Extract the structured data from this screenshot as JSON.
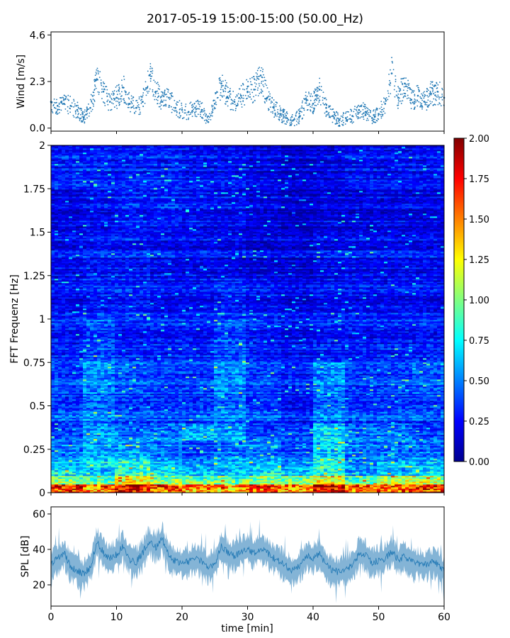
{
  "title": "2017-05-19 15:00-15:00 (50.00_Hz)",
  "chart_data": [
    {
      "type": "scatter",
      "ylabel": "Wind [m/s]",
      "xlim": [
        0,
        60
      ],
      "ylim": [
        -0.15,
        4.75
      ],
      "yticks": [
        0.0,
        2.3,
        4.6
      ],
      "ytick_labels": [
        "0.0",
        "2.3",
        "4.6"
      ],
      "color": "#1f77b4",
      "x": [
        0,
        1,
        2,
        3,
        4,
        5,
        6,
        7,
        8,
        9,
        10,
        11,
        12,
        13,
        14,
        15,
        16,
        17,
        18,
        19,
        20,
        21,
        22,
        23,
        24,
        25,
        26,
        27,
        28,
        29,
        30,
        31,
        32,
        33,
        34,
        35,
        36,
        37,
        38,
        39,
        40,
        41,
        42,
        43,
        44,
        45,
        46,
        47,
        48,
        49,
        50,
        51,
        52,
        53,
        54,
        55,
        56,
        57,
        58,
        59,
        60
      ],
      "y": [
        1.3,
        1.1,
        1.2,
        1.1,
        0.9,
        0.5,
        1.0,
        2.4,
        1.8,
        1.3,
        1.5,
        2.0,
        1.2,
        1.0,
        1.3,
        2.6,
        1.8,
        1.3,
        1.5,
        1.0,
        0.9,
        0.8,
        1.0,
        0.9,
        0.3,
        1.2,
        2.2,
        1.5,
        1.3,
        1.6,
        1.8,
        1.9,
        2.6,
        1.5,
        1.0,
        0.7,
        0.5,
        0.4,
        0.6,
        1.4,
        1.2,
        1.9,
        1.0,
        0.6,
        0.4,
        0.5,
        0.6,
        0.9,
        0.8,
        0.5,
        0.7,
        1.2,
        2.7,
        1.5,
        2.2,
        1.4,
        1.6,
        1.3,
        1.7,
        1.8,
        1.5
      ]
    },
    {
      "type": "heatmap",
      "ylabel": "FFT Frequenz [Hz]",
      "xlim": [
        0,
        60
      ],
      "ylim": [
        0,
        2
      ],
      "yticks": [
        0,
        0.25,
        0.5,
        0.75,
        1,
        1.25,
        1.5,
        1.75,
        2
      ],
      "ytick_labels": [
        "0",
        "0.25",
        "0.5",
        "0.75",
        "1",
        "1.25",
        "1.5",
        "1.75",
        "2"
      ],
      "colormap": "jet",
      "colorbar_range": [
        0.0,
        2.0
      ],
      "colorbar_ticks": [
        "0.00",
        "0.25",
        "0.50",
        "0.75",
        "1.00",
        "1.25",
        "1.50",
        "1.75",
        "2.00"
      ],
      "colorbar_colors": [
        "#00008f",
        "#0000ff",
        "#0080ff",
        "#00ffff",
        "#80ff80",
        "#ffff00",
        "#ff8000",
        "#ff0000",
        "#800000"
      ],
      "x_segments": [
        0,
        5,
        10,
        15,
        20,
        25,
        30,
        35,
        40,
        45,
        50,
        55,
        60
      ],
      "freq_bands": [
        0,
        0.05,
        0.1,
        0.15,
        0.2,
        0.3,
        0.4,
        0.55,
        0.75,
        1.0,
        1.25,
        1.5,
        1.75,
        2.0
      ],
      "values": [
        [
          1.7,
          1.5,
          1.8,
          1.6,
          1.5,
          1.4,
          1.6,
          1.5,
          1.9,
          1.5,
          1.6,
          1.7
        ],
        [
          1.0,
          0.9,
          1.2,
          1.0,
          0.9,
          0.9,
          1.0,
          1.0,
          1.2,
          0.9,
          1.1,
          1.1
        ],
        [
          0.8,
          0.7,
          0.9,
          0.8,
          0.7,
          0.7,
          0.8,
          0.7,
          0.9,
          0.6,
          0.7,
          0.8
        ],
        [
          0.6,
          0.7,
          0.8,
          0.6,
          0.5,
          0.6,
          0.6,
          0.5,
          0.8,
          0.5,
          0.6,
          0.6
        ],
        [
          0.5,
          0.6,
          0.6,
          0.5,
          0.4,
          0.5,
          0.5,
          0.4,
          0.7,
          0.5,
          0.5,
          0.5
        ],
        [
          0.4,
          0.6,
          0.5,
          0.5,
          0.6,
          0.6,
          0.4,
          0.4,
          0.7,
          0.5,
          0.5,
          0.4
        ],
        [
          0.4,
          0.5,
          0.4,
          0.4,
          0.4,
          0.5,
          0.4,
          0.3,
          0.5,
          0.4,
          0.4,
          0.4
        ],
        [
          0.35,
          0.5,
          0.4,
          0.35,
          0.35,
          0.5,
          0.35,
          0.3,
          0.5,
          0.35,
          0.35,
          0.4
        ],
        [
          0.3,
          0.4,
          0.3,
          0.3,
          0.3,
          0.4,
          0.3,
          0.25,
          0.3,
          0.3,
          0.3,
          0.3
        ],
        [
          0.25,
          0.3,
          0.3,
          0.25,
          0.25,
          0.3,
          0.25,
          0.2,
          0.25,
          0.25,
          0.25,
          0.25
        ],
        [
          0.25,
          0.3,
          0.3,
          0.25,
          0.25,
          0.25,
          0.2,
          0.2,
          0.25,
          0.25,
          0.25,
          0.25
        ],
        [
          0.2,
          0.25,
          0.3,
          0.3,
          0.25,
          0.25,
          0.2,
          0.15,
          0.2,
          0.2,
          0.2,
          0.2
        ],
        [
          0.3,
          0.3,
          0.3,
          0.3,
          0.25,
          0.25,
          0.2,
          0.15,
          0.2,
          0.25,
          0.25,
          0.25
        ]
      ]
    },
    {
      "type": "line",
      "ylabel": "SPL [dB]",
      "xlabel": "time [min]",
      "xlim": [
        0,
        60
      ],
      "ylim": [
        8,
        64
      ],
      "yticks": [
        20,
        40,
        60
      ],
      "ytick_labels": [
        "20",
        "40",
        "60"
      ],
      "xticks": [
        0,
        10,
        20,
        30,
        40,
        50,
        60
      ],
      "xtick_labels": [
        "0",
        "10",
        "20",
        "30",
        "40",
        "50",
        "60"
      ],
      "color": "#1f77b4",
      "x": [
        0,
        1,
        2,
        3,
        4,
        5,
        6,
        7,
        8,
        9,
        10,
        11,
        12,
        13,
        14,
        15,
        16,
        17,
        18,
        19,
        20,
        21,
        22,
        23,
        24,
        25,
        26,
        27,
        28,
        29,
        30,
        31,
        32,
        33,
        34,
        35,
        36,
        37,
        38,
        39,
        40,
        41,
        42,
        43,
        44,
        45,
        46,
        47,
        48,
        49,
        50,
        51,
        52,
        53,
        54,
        55,
        56,
        57,
        58,
        59,
        60
      ],
      "y": [
        32,
        35,
        38,
        30,
        28,
        26,
        30,
        44,
        38,
        35,
        37,
        42,
        34,
        33,
        38,
        45,
        41,
        46,
        36,
        33,
        32,
        33,
        35,
        33,
        30,
        32,
        42,
        38,
        36,
        39,
        40,
        38,
        41,
        38,
        35,
        33,
        30,
        28,
        31,
        36,
        35,
        38,
        31,
        28,
        27,
        29,
        30,
        38,
        37,
        32,
        34,
        35,
        39,
        34,
        36,
        33,
        32,
        31,
        33,
        32,
        28
      ]
    }
  ]
}
